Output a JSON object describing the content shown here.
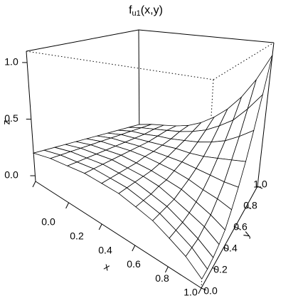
{
  "chart_data": {
    "type": "surface",
    "title": {
      "main": "f",
      "subscript": "u1",
      "rest": "(x,y)"
    },
    "x_label": "x",
    "y_label": "y",
    "z_label": "z",
    "x": [
      0,
      0.1,
      0.2,
      0.3,
      0.4,
      0.5,
      0.6,
      0.7,
      0.8,
      0.9,
      1
    ],
    "y": [
      0,
      0.1,
      0.2,
      0.3,
      0.4,
      0.5,
      0.6,
      0.7,
      0.8,
      0.9,
      1
    ],
    "z": [
      [
        0.2,
        0.2,
        0.2,
        0.2,
        0.2,
        0.2,
        0.2,
        0.2,
        0.2,
        0.2,
        0.2
      ],
      [
        0.23,
        0.23,
        0.23,
        0.23,
        0.23,
        0.23,
        0.23,
        0.23,
        0.23,
        0.23,
        0.23
      ],
      [
        0.24,
        0.24,
        0.24,
        0.24,
        0.24,
        0.24,
        0.24,
        0.24,
        0.24,
        0.25,
        0.25
      ],
      [
        0.25,
        0.25,
        0.25,
        0.25,
        0.25,
        0.25,
        0.25,
        0.25,
        0.26,
        0.27,
        0.27
      ],
      [
        0.24,
        0.24,
        0.24,
        0.24,
        0.24,
        0.25,
        0.25,
        0.26,
        0.27,
        0.29,
        0.3
      ],
      [
        0.23,
        0.23,
        0.23,
        0.23,
        0.23,
        0.24,
        0.25,
        0.27,
        0.29,
        0.32,
        0.35
      ],
      [
        0.2,
        0.2,
        0.2,
        0.21,
        0.21,
        0.23,
        0.25,
        0.27,
        0.31,
        0.36,
        0.42
      ],
      [
        0.17,
        0.17,
        0.17,
        0.17,
        0.19,
        0.21,
        0.24,
        0.28,
        0.34,
        0.42,
        0.51
      ],
      [
        0.12,
        0.12,
        0.12,
        0.13,
        0.15,
        0.18,
        0.23,
        0.3,
        0.38,
        0.49,
        0.63
      ],
      [
        0.07,
        0.07,
        0.07,
        0.09,
        0.11,
        0.16,
        0.22,
        0.32,
        0.44,
        0.6,
        0.79
      ],
      [
        0,
        0,
        0.01,
        0.03,
        0.06,
        0.13,
        0.22,
        0.34,
        0.51,
        0.73,
        1
      ]
    ],
    "color": "#ffffff",
    "line_color": "#000000",
    "xlim": [
      0,
      1
    ],
    "ylim": [
      0,
      1
    ],
    "zlim": [
      -0.05,
      1.1
    ],
    "xticks": [
      {
        "value": 0,
        "label": "0.0"
      },
      0.2,
      0.4,
      0.6,
      0.8,
      {
        "value": 1,
        "label": "1.0"
      }
    ],
    "yticks": [
      {
        "value": 0,
        "label": "0.0"
      },
      0.2,
      0.4,
      0.6,
      0.8,
      {
        "value": 1,
        "label": "1.0"
      }
    ],
    "zticks": [
      {
        "value": 0,
        "label": "0.0"
      },
      {
        "value": 0.5,
        "label": "0.5"
      },
      {
        "value": 1,
        "label": "1.0"
      }
    ]
  }
}
